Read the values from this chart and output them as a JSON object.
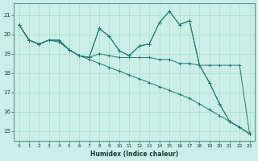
{
  "xlabel": "Humidex (Indice chaleur)",
  "background_color": "#cceee8",
  "grid_color": "#aaddcc",
  "line_color": "#1a7a6e",
  "xlim": [
    -0.5,
    23.5
  ],
  "ylim": [
    14.5,
    21.6
  ],
  "yticks": [
    15,
    16,
    17,
    18,
    19,
    20,
    21
  ],
  "xticks": [
    0,
    1,
    2,
    3,
    4,
    5,
    6,
    7,
    8,
    9,
    10,
    11,
    12,
    13,
    14,
    15,
    16,
    17,
    18,
    19,
    20,
    21,
    22,
    23
  ],
  "s1": [
    20.5,
    19.7,
    19.5,
    19.7,
    19.7,
    19.2,
    18.9,
    18.8,
    19.0,
    18.9,
    18.8,
    18.8,
    18.8,
    18.8,
    18.7,
    18.7,
    18.5,
    18.5,
    18.4,
    18.4,
    18.4,
    18.4,
    18.4,
    14.85
  ],
  "s2": [
    20.5,
    19.7,
    19.5,
    19.7,
    19.6,
    19.2,
    18.9,
    18.7,
    18.5,
    18.3,
    18.1,
    17.9,
    17.7,
    17.5,
    17.3,
    17.1,
    16.9,
    16.7,
    16.4,
    16.1,
    15.8,
    15.5,
    15.2,
    14.85
  ],
  "s3": [
    20.5,
    19.7,
    19.5,
    19.7,
    19.7,
    19.2,
    18.9,
    18.8,
    20.3,
    19.9,
    19.15,
    18.9,
    19.4,
    19.5,
    20.6,
    21.2,
    20.5,
    20.7,
    18.4,
    17.5,
    16.4,
    15.5,
    15.2,
    14.85
  ],
  "s4": [
    20.5,
    19.7,
    19.5,
    19.7,
    19.7,
    19.2,
    18.9,
    18.8,
    20.3,
    19.9,
    19.15,
    18.9,
    19.4,
    19.5,
    20.6,
    21.2,
    20.5,
    20.7,
    18.4,
    17.5,
    16.4,
    15.5,
    15.2,
    14.85
  ]
}
